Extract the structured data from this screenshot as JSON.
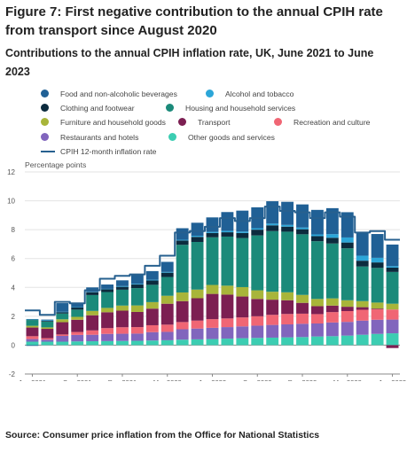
{
  "figure_title": "Figure 7: First negative contribution to the annual CPIH rate from transport since August 2020",
  "source": "Source: Consumer price inflation from the Office for National Statistics",
  "chart_data": {
    "type": "bar",
    "stacked": true,
    "title": "Contributions to the annual CPIH inflation rate, UK, June 2021 to June 2023",
    "ylabel": "Percentage points",
    "xlabel": "",
    "ylim": [
      -2,
      12
    ],
    "yticks": [
      -2,
      0,
      2,
      4,
      6,
      8,
      10,
      12
    ],
    "grid": true,
    "legend_position": "top",
    "categories": [
      "Jun 2021",
      "Jul 2021",
      "Aug 2021",
      "Sep 2021",
      "Oct 2021",
      "Nov 2021",
      "Dec 2021",
      "Jan 2022",
      "Feb 2022",
      "Mar 2022",
      "Apr 2022",
      "May 2022",
      "Jun 2022",
      "Jul 2022",
      "Aug 2022",
      "Sep 2022",
      "Oct 2022",
      "Nov 2022",
      "Dec 2022",
      "Jan 2023",
      "Feb 2023",
      "Mar 2023",
      "Apr 2023",
      "May 2023",
      "Jun 2023"
    ],
    "xtick_labels": [
      "Jun 2021",
      "Sep 2021",
      "Dec 2021",
      "Mar 2022",
      "Jun 2022",
      "Sep 2022",
      "Dec 2022",
      "Mar 2023",
      "Jun 2023"
    ],
    "series": [
      {
        "name": "Other goods and services",
        "color": "#3ccdb2",
        "values": [
          0.24,
          0.24,
          0.24,
          0.26,
          0.27,
          0.28,
          0.29,
          0.3,
          0.32,
          0.34,
          0.38,
          0.4,
          0.42,
          0.45,
          0.48,
          0.5,
          0.52,
          0.54,
          0.56,
          0.6,
          0.62,
          0.66,
          0.72,
          0.78,
          0.82
        ]
      },
      {
        "name": "Restaurants and hotels",
        "color": "#8165bd",
        "values": [
          0.18,
          0.14,
          0.4,
          0.45,
          0.45,
          0.5,
          0.5,
          0.5,
          0.58,
          0.58,
          0.72,
          0.75,
          0.78,
          0.8,
          0.82,
          0.85,
          0.88,
          0.9,
          0.92,
          0.9,
          0.95,
          0.95,
          0.98,
          0.98,
          0.95
        ]
      },
      {
        "name": "Recreation and culture",
        "color": "#f06674",
        "values": [
          0.2,
          0.1,
          0.1,
          0.2,
          0.3,
          0.4,
          0.45,
          0.45,
          0.48,
          0.5,
          0.5,
          0.55,
          0.6,
          0.6,
          0.62,
          0.65,
          0.7,
          0.72,
          0.7,
          0.65,
          0.72,
          0.75,
          0.75,
          0.72,
          0.7
        ]
      },
      {
        "name": "Transport",
        "color": "#7c1f52",
        "values": [
          0.6,
          0.65,
          0.85,
          0.85,
          1.05,
          1.1,
          1.15,
          1.05,
          1.15,
          1.45,
          1.45,
          1.55,
          1.75,
          1.65,
          1.45,
          1.2,
          1.05,
          0.95,
          0.75,
          0.55,
          0.45,
          0.3,
          0.18,
          0.05,
          -0.2
        ]
      },
      {
        "name": "Furniture and household goods",
        "color": "#a8b53a",
        "values": [
          0.12,
          0.1,
          0.2,
          0.2,
          0.3,
          0.3,
          0.35,
          0.45,
          0.45,
          0.55,
          0.6,
          0.6,
          0.62,
          0.62,
          0.65,
          0.6,
          0.55,
          0.55,
          0.55,
          0.5,
          0.5,
          0.45,
          0.42,
          0.42,
          0.4
        ]
      },
      {
        "name": "Housing and household services",
        "color": "#1b8a7a",
        "values": [
          0.4,
          0.4,
          0.4,
          0.5,
          1.1,
          1.1,
          1.1,
          1.2,
          1.2,
          1.3,
          3.3,
          3.3,
          3.3,
          3.4,
          3.4,
          3.8,
          4.2,
          4.2,
          4.2,
          4.0,
          3.8,
          3.6,
          2.4,
          2.4,
          2.2
        ]
      },
      {
        "name": "Clothing and footwear",
        "color": "#0c2b3e",
        "values": [
          0.03,
          0.05,
          0.1,
          0.15,
          0.2,
          0.2,
          0.2,
          0.25,
          0.3,
          0.3,
          0.3,
          0.35,
          0.3,
          0.3,
          0.35,
          0.4,
          0.4,
          0.35,
          0.35,
          0.35,
          0.4,
          0.4,
          0.4,
          0.38,
          0.3
        ]
      },
      {
        "name": "Alcohol and tobacco",
        "color": "#2ca6d8",
        "values": [
          0.04,
          0.04,
          0.02,
          0.02,
          0.03,
          0.02,
          0.05,
          0.05,
          0.05,
          0.05,
          0.05,
          0.08,
          0.08,
          0.1,
          0.1,
          0.1,
          0.12,
          0.12,
          0.12,
          0.12,
          0.25,
          0.35,
          0.35,
          0.32,
          0.1
        ]
      },
      {
        "name": "Food and non-alcoholic beverages",
        "color": "#206095",
        "values": [
          -0.05,
          0.05,
          0.6,
          0.3,
          0.3,
          0.3,
          0.4,
          0.6,
          0.6,
          0.7,
          0.8,
          0.9,
          1.0,
          1.3,
          1.45,
          1.45,
          1.55,
          1.6,
          1.6,
          1.7,
          1.8,
          1.75,
          1.6,
          1.65,
          1.5
        ]
      }
    ],
    "line": {
      "name": "CPIH 12-month inflation rate",
      "color": "#27608f",
      "values": [
        2.4,
        2.1,
        3.0,
        2.9,
        3.8,
        4.6,
        4.8,
        4.9,
        5.5,
        6.2,
        7.8,
        7.9,
        8.2,
        8.8,
        8.6,
        8.8,
        9.6,
        9.3,
        9.2,
        8.8,
        9.2,
        8.9,
        7.8,
        7.9,
        7.3
      ]
    }
  },
  "legend": [
    {
      "label": "Food and non-alcoholic beverages",
      "color": "#206095",
      "kind": "dot"
    },
    {
      "label": "Alcohol and tobacco",
      "color": "#2ca6d8",
      "kind": "dot"
    },
    {
      "label": "Clothing and footwear",
      "color": "#0c2b3e",
      "kind": "dot"
    },
    {
      "label": "Housing and household services",
      "color": "#1b8a7a",
      "kind": "dot"
    },
    {
      "label": "Furniture and household goods",
      "color": "#a8b53a",
      "kind": "dot"
    },
    {
      "label": "Transport",
      "color": "#7c1f52",
      "kind": "dot"
    },
    {
      "label": "Recreation and culture",
      "color": "#f06674",
      "kind": "dot"
    },
    {
      "label": "Restaurants and hotels",
      "color": "#8165bd",
      "kind": "dot"
    },
    {
      "label": "Other goods and services",
      "color": "#3ccdb2",
      "kind": "dot"
    },
    {
      "label": "CPIH 12-month inflation rate",
      "color": "#27608f",
      "kind": "line"
    }
  ]
}
